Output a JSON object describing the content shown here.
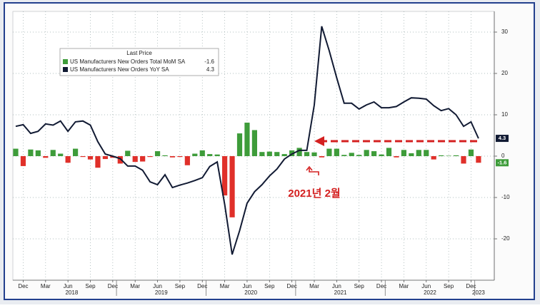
{
  "chart_data": {
    "type": "combo",
    "legend_title": "Last Price",
    "categories": [
      null,
      "Dec",
      null,
      null,
      "Mar",
      null,
      null,
      "Jun",
      null,
      null,
      "Sep",
      null,
      null,
      "Dec",
      null,
      null,
      "Mar",
      null,
      null,
      "Jun",
      null,
      null,
      "Sep",
      null,
      null,
      "Dec",
      null,
      null,
      "Mar",
      null,
      null,
      "Jun",
      null,
      null,
      "Sep",
      null,
      null,
      "Dec",
      null,
      null,
      "Mar",
      null,
      null,
      "Jun",
      null,
      null,
      "Sep",
      null,
      null,
      "Dec",
      null,
      null,
      "Mar",
      null,
      null,
      "Jun",
      null,
      null,
      "Sep",
      null,
      null,
      "Dec",
      null
    ],
    "years": [
      "2018",
      "2019",
      "2020",
      "2021",
      "2022",
      "2023"
    ],
    "series": [
      {
        "name": "US Manufacturers New Orders Total MoM SA",
        "type": "bar",
        "color": "#3e9c3a",
        "negative_color": "#e0302a",
        "values": [
          1.8,
          -2.4,
          1.6,
          1.4,
          -0.4,
          1.5,
          0.6,
          -1.6,
          1.8,
          -0.2,
          -0.8,
          -2.8,
          -0.7,
          -0.4,
          -1.8,
          1.3,
          -1.4,
          -1.3,
          -0.2,
          1.2,
          0.2,
          -0.3,
          -0.2,
          -2.2,
          0.6,
          1.4,
          0.5,
          0.4,
          -9.5,
          -14.8,
          5.5,
          8.1,
          6.3,
          1.0,
          1.1,
          1.0,
          0.5,
          1.4,
          2.0,
          1.0,
          0.9,
          -0.3,
          1.8,
          1.8,
          0.3,
          0.8,
          0.3,
          1.5,
          1.2,
          0.4,
          2.0,
          -0.3,
          1.5,
          0.7,
          1.5,
          1.5,
          -0.8,
          0.2,
          0.1,
          0.2,
          -1.8,
          1.6,
          -1.6
        ]
      },
      {
        "name": "US Manufacturers New Orders YoY SA",
        "type": "line",
        "color": "#111a33",
        "values": [
          7.2,
          7.6,
          5.5,
          6.0,
          7.8,
          7.5,
          8.5,
          6.0,
          8.3,
          8.5,
          7.5,
          3.5,
          0.5,
          0,
          -0.6,
          -2.4,
          -2.4,
          -3.4,
          -6.2,
          -6.9,
          -4.5,
          -7.6,
          -7.0,
          -6.5,
          -5.9,
          -5.2,
          -2.5,
          -1.4,
          -11.7,
          -23.8,
          -18,
          -11.4,
          -8.6,
          -6.9,
          -4.8,
          -3.1,
          -0.7,
          0.5,
          1.4,
          1.4,
          12.4,
          31.4,
          25.5,
          19,
          12.8,
          12.8,
          11.4,
          12.4,
          13.1,
          11.7,
          11.7,
          12.0,
          13.1,
          14.1,
          14.0,
          13.8,
          12.2,
          11.0,
          11.5,
          10.0,
          7.2,
          8.3,
          4.3
        ]
      }
    ],
    "annotation": "2021년 2월",
    "ylim": [
      -30,
      35
    ],
    "yticks": [
      -20,
      -10,
      0,
      10,
      20,
      30
    ],
    "grid": true
  }
}
